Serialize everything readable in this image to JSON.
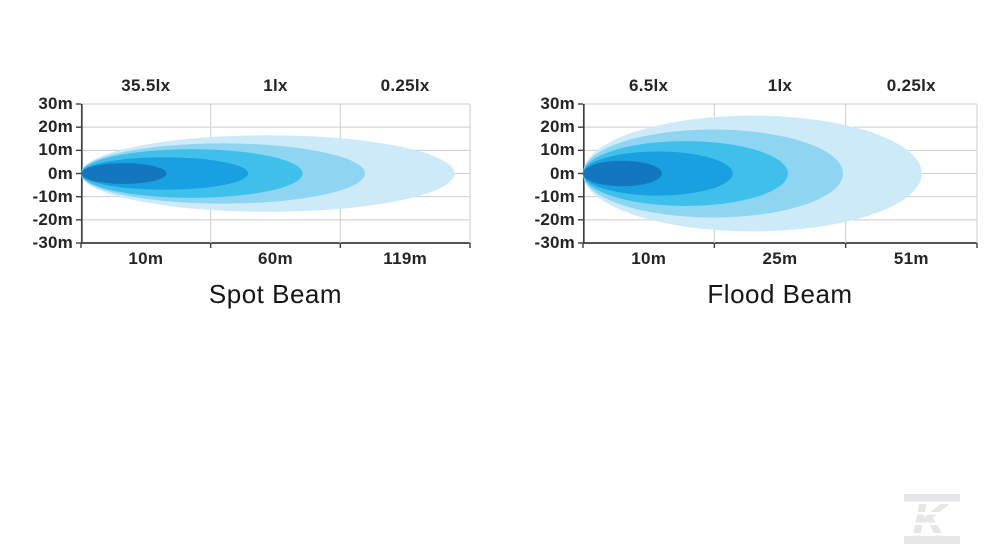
{
  "watermark": {
    "label": "K",
    "color": "#e6e6e9"
  },
  "chart_data": [
    {
      "type": "area",
      "variant": "isolux-beam-pattern",
      "title": "Spot Beam",
      "ylim_m": [
        -30,
        30
      ],
      "y_tick_labels": [
        "30m",
        "20m",
        "10m",
        "0m",
        "-10m",
        "-20m",
        "-30m"
      ],
      "top_lux_labels": [
        "35.5lx",
        "1lx",
        "0.25lx"
      ],
      "bottom_distance_labels": [
        "10m",
        "60m",
        "119m"
      ],
      "isolux_points": [
        {
          "illuminance_lux": 35.5,
          "distance_m": 10
        },
        {
          "illuminance_lux": 1,
          "distance_m": 60
        },
        {
          "illuminance_lux": 0.25,
          "distance_m": 119
        }
      ],
      "grid": true,
      "grid_color": "#c9ced3",
      "axis_color": "#3d3d3d",
      "layers": [
        {
          "zone": 1,
          "color": "#1277bd",
          "reach_frac": 0.22,
          "half_height_m": 4.5
        },
        {
          "zone": 2,
          "color": "#18a0e1",
          "reach_frac": 0.43,
          "half_height_m": 7
        },
        {
          "zone": 3,
          "color": "#3fc0eb",
          "reach_frac": 0.57,
          "half_height_m": 10.5
        },
        {
          "zone": 4,
          "color": "#8ed5f2",
          "reach_frac": 0.73,
          "half_height_m": 13
        },
        {
          "zone": 5,
          "color": "#cdeaf8",
          "reach_frac": 0.96,
          "half_height_m": 16.5
        }
      ]
    },
    {
      "type": "area",
      "variant": "isolux-beam-pattern",
      "title": "Flood Beam",
      "ylim_m": [
        -30,
        30
      ],
      "y_tick_labels": [
        "30m",
        "20m",
        "10m",
        "0m",
        "-10m",
        "-20m",
        "-30m"
      ],
      "top_lux_labels": [
        "6.5lx",
        "1lx",
        "0.25lx"
      ],
      "bottom_distance_labels": [
        "10m",
        "25m",
        "51m"
      ],
      "isolux_points": [
        {
          "illuminance_lux": 6.5,
          "distance_m": 10
        },
        {
          "illuminance_lux": 1,
          "distance_m": 25
        },
        {
          "illuminance_lux": 0.25,
          "distance_m": 51
        }
      ],
      "grid": true,
      "grid_color": "#c9ced3",
      "axis_color": "#3d3d3d",
      "layers": [
        {
          "zone": 1,
          "color": "#1277bd",
          "reach_frac": 0.2,
          "half_height_m": 5.5
        },
        {
          "zone": 2,
          "color": "#18a0e1",
          "reach_frac": 0.38,
          "half_height_m": 9.5
        },
        {
          "zone": 3,
          "color": "#3fc0eb",
          "reach_frac": 0.52,
          "half_height_m": 14
        },
        {
          "zone": 4,
          "color": "#8ed5f2",
          "reach_frac": 0.66,
          "half_height_m": 19
        },
        {
          "zone": 5,
          "color": "#cdeaf8",
          "reach_frac": 0.86,
          "half_height_m": 25
        }
      ]
    }
  ]
}
